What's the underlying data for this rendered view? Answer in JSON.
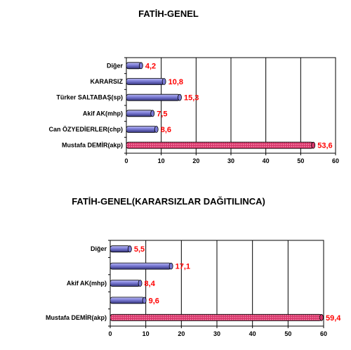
{
  "chart_data": [
    {
      "type": "bar",
      "orientation": "horizontal",
      "title": "FATİH-GENEL",
      "categories": [
        "Diğer",
        "KARARSIZ",
        "Türker SALTABAŞ(sp)",
        "Akif AK(mhp)",
        "Can ÖZYEDİERLER(chp)",
        "Mustafa DEMİR(akp)"
      ],
      "values": [
        4.2,
        10.8,
        15.3,
        7.5,
        8.6,
        53.6
      ],
      "value_labels": [
        "4,2",
        "10,8",
        "15,3",
        "7,5",
        "8,6",
        "53,6"
      ],
      "xlim": [
        0,
        60
      ],
      "xticks": [
        "0",
        "10",
        "20",
        "30",
        "40",
        "50",
        "60"
      ],
      "grid": true,
      "bar_color": "#7b7bd6",
      "highlight_color": "#d8386c",
      "label_color": "#ff0000"
    },
    {
      "type": "bar",
      "orientation": "horizontal",
      "title": "FATİH-GENEL(KARARSIZLAR DAĞITILINCA)",
      "categories": [
        "Diğer",
        "",
        "Akif AK(mhp)",
        "",
        "Mustafa DEMİR(akp)"
      ],
      "values": [
        5.5,
        17.1,
        8.4,
        9.6,
        59.4
      ],
      "value_labels": [
        "5,5",
        "17,1",
        "8,4",
        "9,6",
        "59,4"
      ],
      "xlim": [
        0,
        60
      ],
      "xticks": [
        "0",
        "10",
        "20",
        "30",
        "40",
        "50",
        "60"
      ],
      "grid": true,
      "bar_color": "#7b7bd6",
      "highlight_color": "#d8386c",
      "label_color": "#ff0000"
    }
  ]
}
